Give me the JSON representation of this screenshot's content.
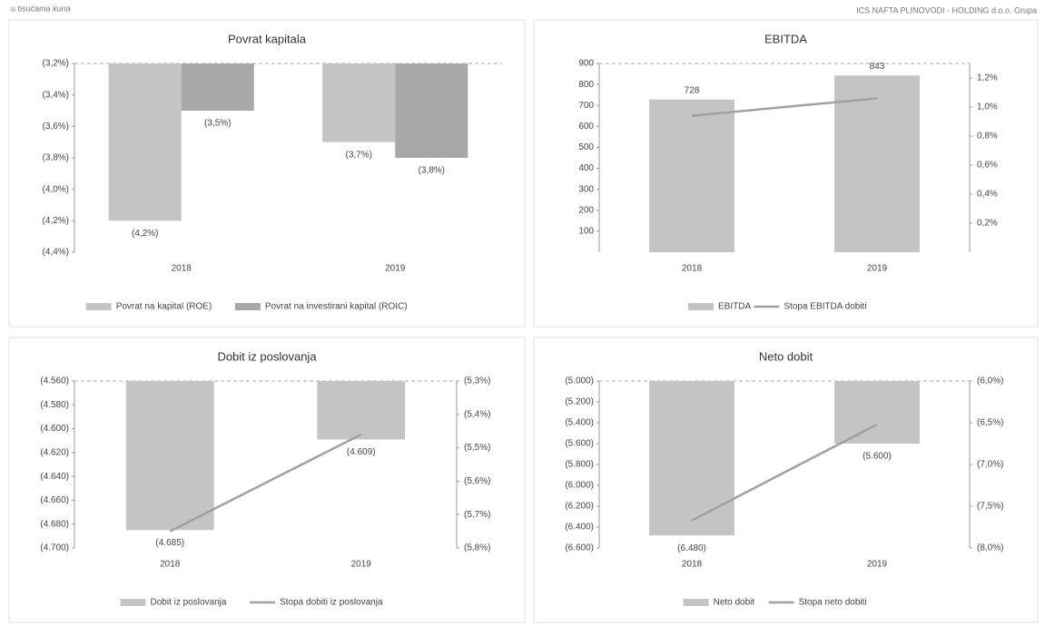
{
  "header": {
    "left": "u tisućama kuna",
    "right": "ICS NAFTA PLINOVODI - HOLDING d.o.o. Grupa"
  },
  "chart_data": [
    {
      "type": "bar",
      "title": "Povrat kapitala",
      "categories": [
        "2018",
        "2019"
      ],
      "ylim": [
        -4.4,
        -3.2
      ],
      "yticks": [
        {
          "value": -3.2,
          "label": "(3,2%)"
        },
        {
          "value": -3.4,
          "label": "(3,4%)"
        },
        {
          "value": -3.6,
          "label": "(3,6%)"
        },
        {
          "value": -3.8,
          "label": "(3,8%)"
        },
        {
          "value": -4.0,
          "label": "(4,0%)"
        },
        {
          "value": -4.2,
          "label": "(4,2%)"
        },
        {
          "value": -4.4,
          "label": "(4,4%)"
        }
      ],
      "series": [
        {
          "name": "Povrat na kapital (ROE)",
          "color": "#c4c4c4",
          "values": [
            -4.2,
            -3.7
          ],
          "value_labels": [
            "(4,2%)",
            "(3,7%)"
          ]
        },
        {
          "name": "Povrat na investirani kapital (ROIC)",
          "color": "#a8a8a8",
          "values": [
            -3.5,
            -3.8
          ],
          "value_labels": [
            "(3,5%)",
            "(3,8%)"
          ]
        }
      ]
    },
    {
      "type": "combo",
      "title": "EBITDA",
      "categories": [
        "2018",
        "2019"
      ],
      "ylim": [
        0,
        900
      ],
      "yticks": [
        100,
        200,
        300,
        400,
        500,
        600,
        700,
        800,
        900
      ],
      "y2lim": [
        0,
        1.3
      ],
      "y2ticks": [
        {
          "value": 0.2,
          "label": "0,2%"
        },
        {
          "value": 0.4,
          "label": "0,4%"
        },
        {
          "value": 0.6,
          "label": "0,6%"
        },
        {
          "value": 0.8,
          "label": "0,8%"
        },
        {
          "value": 1.0,
          "label": "1,0%"
        },
        {
          "value": 1.2,
          "label": "1,2%"
        }
      ],
      "series": [
        {
          "name": "EBITDA",
          "color": "#c4c4c4",
          "values": [
            728,
            843
          ]
        },
        {
          "name": "Stopa EBITDA dobiti",
          "color": "#a0a0a0",
          "values": [
            0.94,
            1.06
          ],
          "axis": "y2"
        }
      ]
    },
    {
      "type": "combo",
      "title": "Dobit iz poslovanja",
      "categories": [
        "2018",
        "2019"
      ],
      "ylim": [
        -4700,
        -4560
      ],
      "yticks": [
        {
          "value": -4560,
          "label": "(4.560)"
        },
        {
          "value": -4580,
          "label": "(4.580)"
        },
        {
          "value": -4600,
          "label": "(4.600)"
        },
        {
          "value": -4620,
          "label": "(4.620)"
        },
        {
          "value": -4640,
          "label": "(4.640)"
        },
        {
          "value": -4660,
          "label": "(4.660)"
        },
        {
          "value": -4680,
          "label": "(4.680)"
        },
        {
          "value": -4700,
          "label": "(4.700)"
        }
      ],
      "y2lim": [
        -5.8,
        -5.3
      ],
      "y2ticks": [
        {
          "value": -5.3,
          "label": "(5,3%)"
        },
        {
          "value": -5.4,
          "label": "(5,4%)"
        },
        {
          "value": -5.5,
          "label": "(5,5%)"
        },
        {
          "value": -5.6,
          "label": "(5,6%)"
        },
        {
          "value": -5.7,
          "label": "(5,7%)"
        },
        {
          "value": -5.8,
          "label": "(5,8%)"
        }
      ],
      "series": [
        {
          "name": "Dobit iz poslovanja",
          "color": "#c4c4c4",
          "values": [
            -4685,
            -4609
          ],
          "value_labels": [
            "(4.685)",
            "(4.609)"
          ]
        },
        {
          "name": "Stopa dobiti iz poslovanja",
          "color": "#a0a0a0",
          "values": [
            -5.75,
            -5.46
          ],
          "axis": "y2"
        }
      ]
    },
    {
      "type": "combo",
      "title": "Neto dobit",
      "categories": [
        "2018",
        "2019"
      ],
      "ylim": [
        -6600,
        -5000
      ],
      "yticks": [
        {
          "value": -5000,
          "label": "(5.000)"
        },
        {
          "value": -5200,
          "label": "(5.200)"
        },
        {
          "value": -5400,
          "label": "(5.400)"
        },
        {
          "value": -5600,
          "label": "(5.600)"
        },
        {
          "value": -5800,
          "label": "(5.800)"
        },
        {
          "value": -6000,
          "label": "(6.000)"
        },
        {
          "value": -6200,
          "label": "(6.200)"
        },
        {
          "value": -6400,
          "label": "(6.400)"
        },
        {
          "value": -6600,
          "label": "(6.600)"
        }
      ],
      "y2lim": [
        -8.0,
        -6.0
      ],
      "y2ticks": [
        {
          "value": -6.0,
          "label": "(6,0%)"
        },
        {
          "value": -6.5,
          "label": "(6,5%)"
        },
        {
          "value": -7.0,
          "label": "(7,0%)"
        },
        {
          "value": -7.5,
          "label": "(7,5%)"
        },
        {
          "value": -8.0,
          "label": "(8,0%)"
        }
      ],
      "series": [
        {
          "name": "Neto dobit",
          "color": "#c4c4c4",
          "values": [
            -6480,
            -5600
          ],
          "value_labels": [
            "(6.480)",
            "(5.600)"
          ]
        },
        {
          "name": "Stopa neto dobiti",
          "color": "#a0a0a0",
          "values": [
            -7.67,
            -6.52
          ],
          "axis": "y2"
        }
      ]
    }
  ]
}
